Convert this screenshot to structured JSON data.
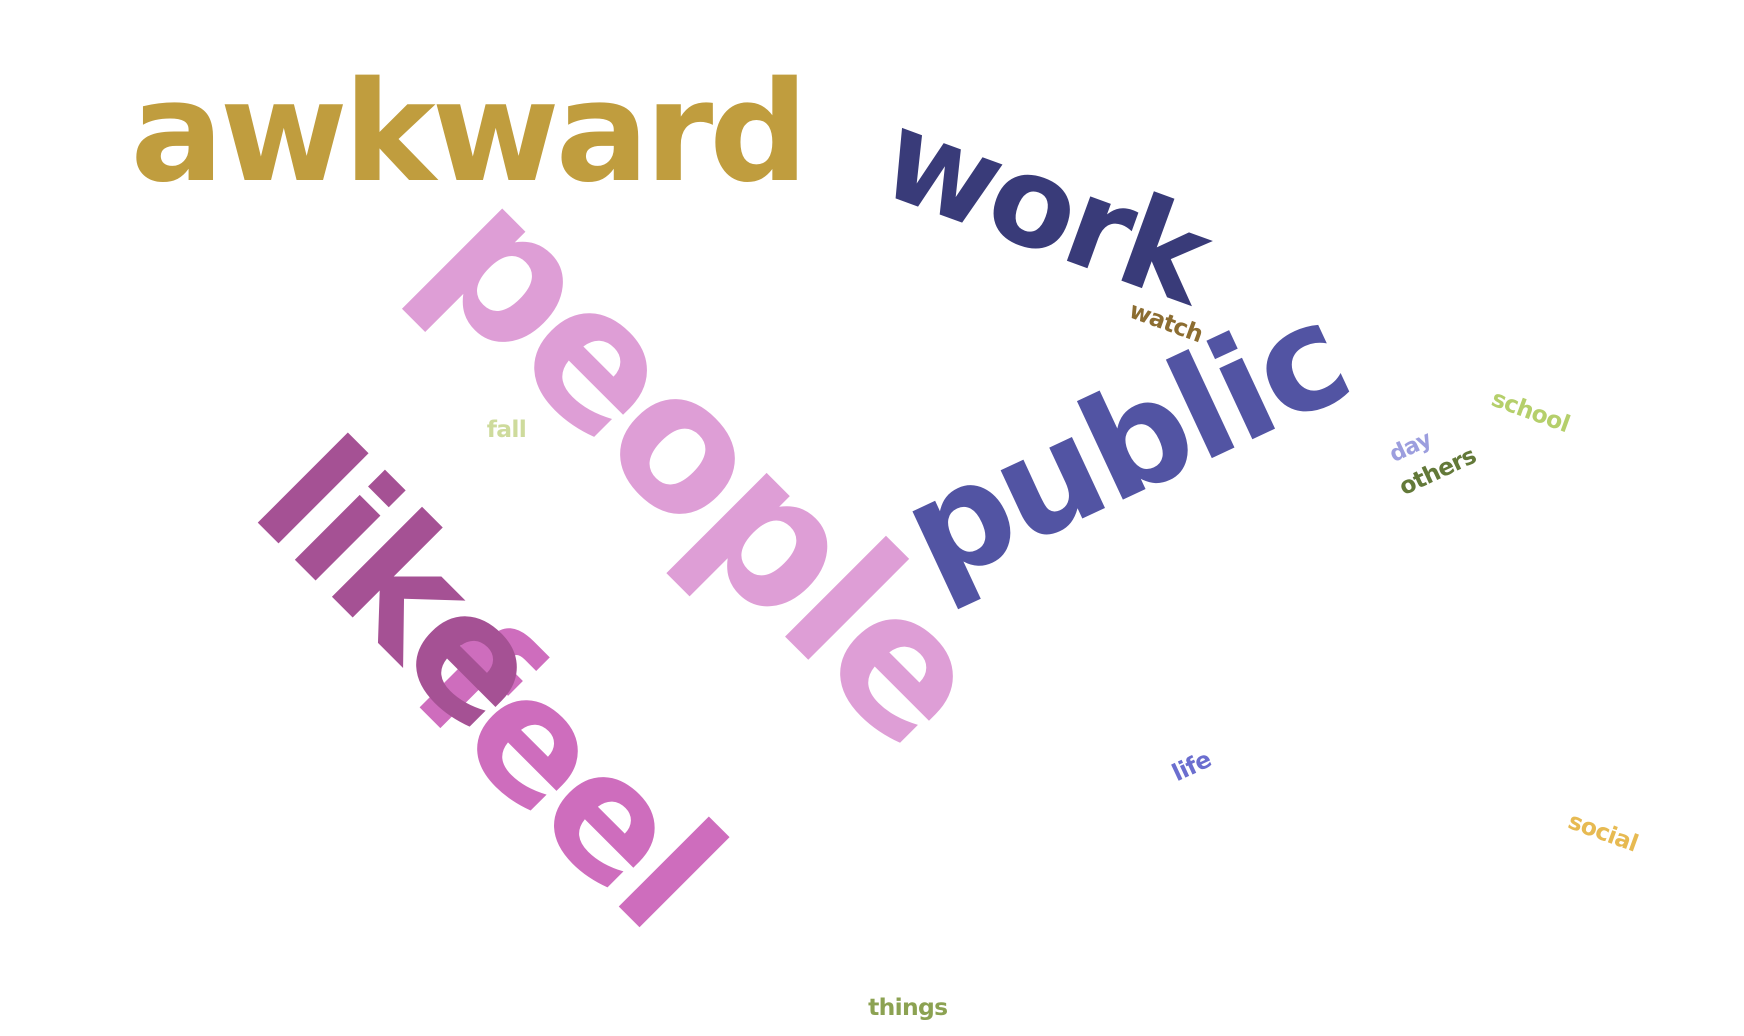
{
  "words": [
    {
      "key": "awkward",
      "text": "awkward",
      "color": "#c09d3e"
    },
    {
      "key": "people",
      "text": "people",
      "color": "#de9ed6"
    },
    {
      "key": "like",
      "text": "like",
      "color": "#a55194"
    },
    {
      "key": "feel",
      "text": "feel",
      "color": "#ce6dbd"
    },
    {
      "key": "work",
      "text": "work",
      "color": "#393b79"
    },
    {
      "key": "public",
      "text": "public",
      "color": "#5254a3"
    },
    {
      "key": "watch",
      "text": "watch",
      "color": "#8c6d31"
    },
    {
      "key": "school",
      "text": "school",
      "color": "#b5cf6b"
    },
    {
      "key": "day",
      "text": "day",
      "color": "#9c9ede"
    },
    {
      "key": "others",
      "text": "others",
      "color": "#637939"
    },
    {
      "key": "fall",
      "text": "fall",
      "color": "#cedb9c"
    },
    {
      "key": "life",
      "text": "life",
      "color": "#6b6ecf"
    },
    {
      "key": "social",
      "text": "social",
      "color": "#e7ba52"
    },
    {
      "key": "things",
      "text": "things",
      "color": "#8ca252"
    }
  ]
}
